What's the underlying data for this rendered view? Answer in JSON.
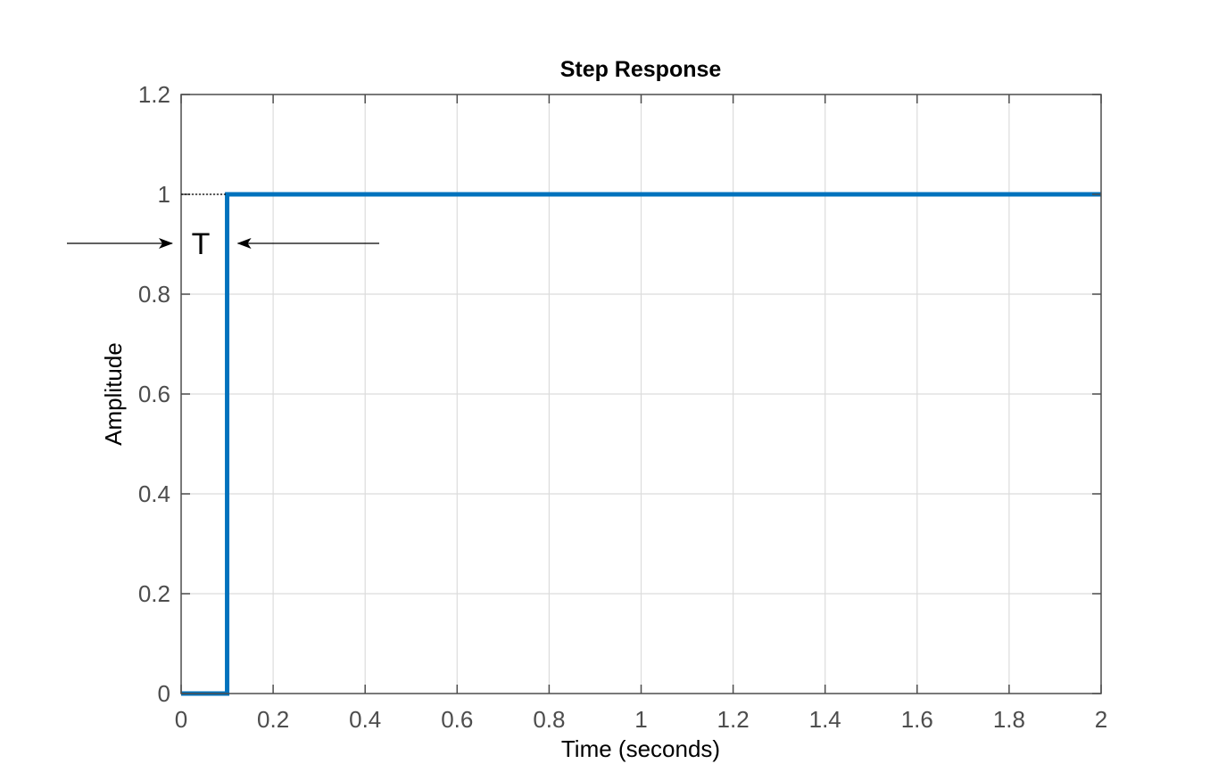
{
  "chart_data": {
    "type": "line",
    "title": "Step Response",
    "xlabel": "Time (seconds)",
    "ylabel": "Amplitude",
    "xlim": [
      0,
      2
    ],
    "ylim": [
      0,
      1.2
    ],
    "xticks": [
      0,
      0.2,
      0.4,
      0.6,
      0.8,
      1,
      1.2,
      1.4,
      1.6,
      1.8,
      2
    ],
    "xtick_labels": [
      "0",
      "0.2",
      "0.4",
      "0.6",
      "0.8",
      "1",
      "1.2",
      "1.4",
      "1.6",
      "1.8",
      "2"
    ],
    "yticks": [
      0,
      0.2,
      0.4,
      0.6,
      0.8,
      1,
      1.2
    ],
    "ytick_labels": [
      "0",
      "0.2",
      "0.4",
      "0.6",
      "0.8",
      "1",
      "1.2"
    ],
    "grid": true,
    "series": [
      {
        "color": "#0072bd",
        "x": [
          0,
          0.1,
          0.1,
          2
        ],
        "y": [
          0,
          0,
          1,
          1
        ]
      }
    ],
    "annotations": [
      {
        "text": "T",
        "type": "delay-marker",
        "x_start": 0,
        "x_end": 0.1,
        "y": 1
      }
    ],
    "colors": {
      "line": "#0072bd",
      "grid": "#dcdcdc",
      "axes": "#4d4d4d"
    }
  }
}
